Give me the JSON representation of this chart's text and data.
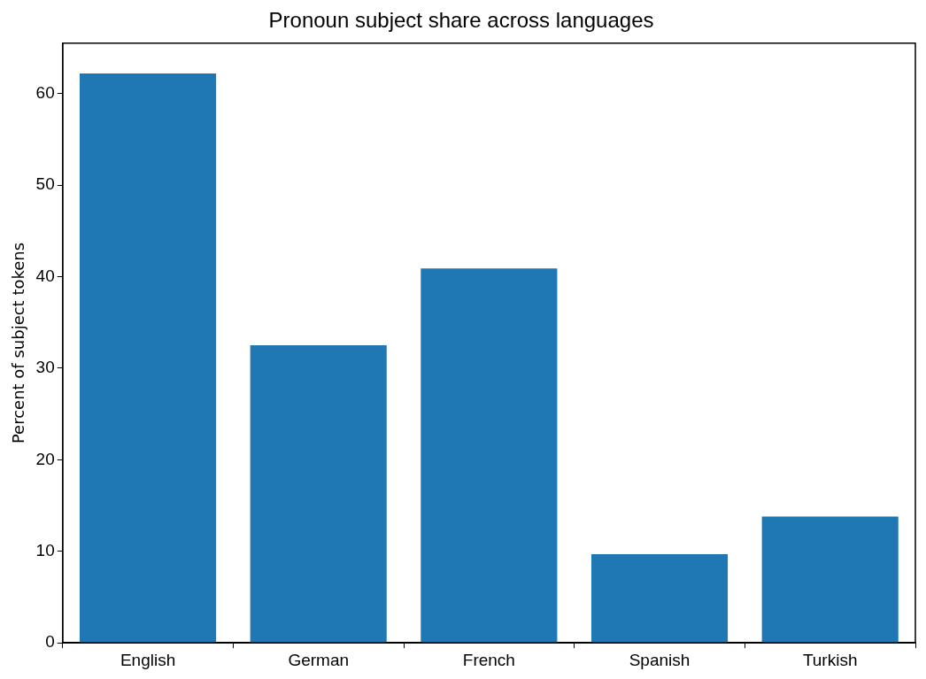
{
  "chart_data": {
    "type": "bar",
    "title": "Pronoun subject share across languages",
    "ylabel": "Percent of subject tokens",
    "categories": [
      "English",
      "German",
      "French",
      "Spanish",
      "Turkish"
    ],
    "values": [
      62.2,
      32.5,
      40.9,
      9.7,
      13.8
    ],
    "color": "#1f77b4",
    "ylim": [
      0,
      65.5
    ],
    "yticks": [
      0,
      10,
      20,
      30,
      40,
      50,
      60
    ],
    "grid": false,
    "legend": false
  }
}
